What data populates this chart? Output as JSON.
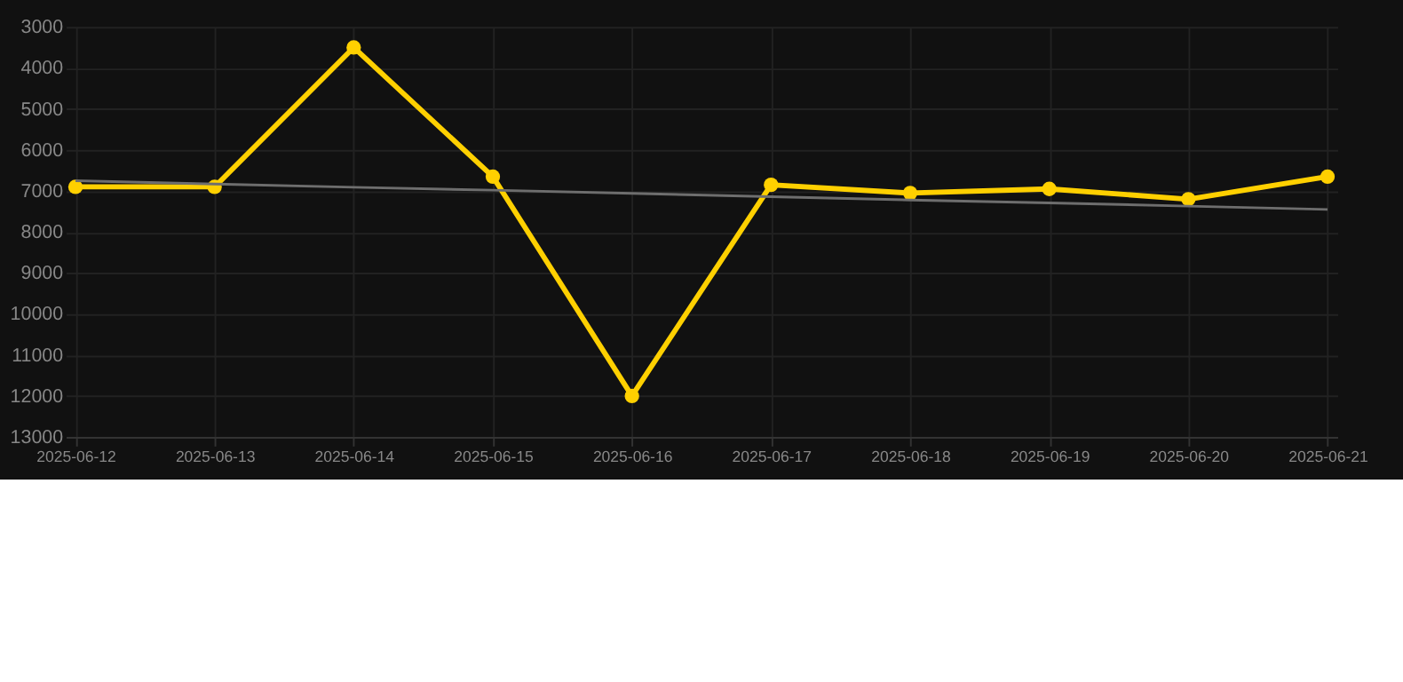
{
  "chart_data": {
    "type": "line",
    "categories": [
      "2025-06-12",
      "2025-06-13",
      "2025-06-14",
      "2025-06-15",
      "2025-06-16",
      "2025-06-17",
      "2025-06-18",
      "2025-06-19",
      "2025-06-20",
      "2025-06-21"
    ],
    "series": [
      {
        "type": "line",
        "color": "#ffd000",
        "marker": "circle",
        "values": [
          6900,
          6900,
          3500,
          6650,
          12000,
          6850,
          7050,
          6950,
          7200,
          6650
        ]
      },
      {
        "type": "line",
        "color": "#6e6e6e",
        "marker": "none",
        "values": [
          6750,
          6830,
          6910,
          6980,
          7060,
          7140,
          7220,
          7290,
          7370,
          7450
        ]
      }
    ],
    "ylim": [
      13000,
      3000
    ],
    "yticks": [
      3000,
      4000,
      5000,
      6000,
      7000,
      8000,
      9000,
      10000,
      11000,
      12000,
      13000
    ],
    "grid": true
  }
}
